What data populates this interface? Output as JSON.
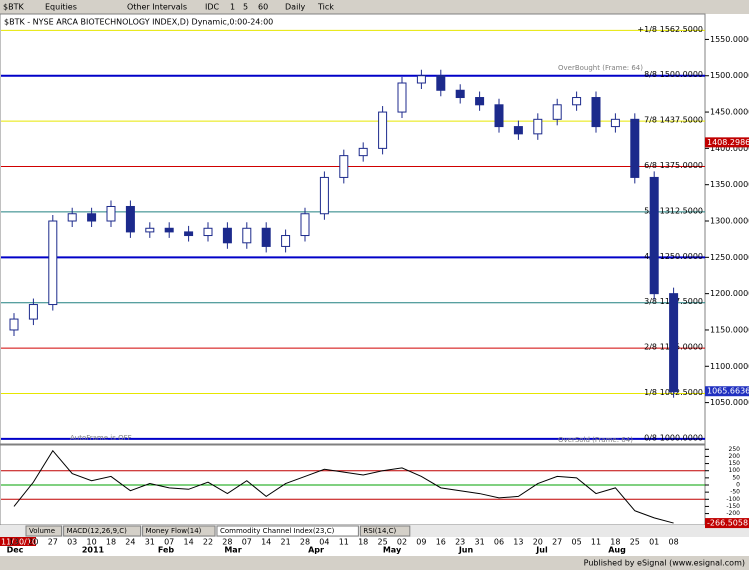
{
  "toolbar": {
    "symbol": "$BTK",
    "items": [
      "Equities",
      "Other Intervals",
      "IDC",
      "1",
      "5",
      "60",
      "Daily",
      "Tick"
    ]
  },
  "chart_data": {
    "type": "candlestick",
    "title": "$BTK - NYSE ARCA BIOTECHNOLOGY INDEX,D) Dynamic,0:00-24:00",
    "categories": [
      "13",
      "20",
      "27",
      "03",
      "10",
      "18",
      "24",
      "31",
      "07",
      "14",
      "22",
      "28",
      "07",
      "14",
      "21",
      "28",
      "04",
      "11",
      "18",
      "25",
      "02",
      "09",
      "16",
      "23",
      "31",
      "06",
      "13",
      "20",
      "27",
      "05",
      "11",
      "18",
      "25",
      "01",
      "08"
    ],
    "months": [
      "Dec",
      "2011",
      "Feb",
      "Mar",
      "Apr",
      "May",
      "Jun",
      "Jul",
      "Aug"
    ],
    "series": [
      {
        "name": "$BTK",
        "color": "#1c2a8c",
        "values": [
          1165,
          1185,
          1300,
          1310,
          1300,
          1320,
          1285,
          1290,
          1285,
          1280,
          1290,
          1270,
          1290,
          1265,
          1280,
          1310,
          1360,
          1390,
          1400,
          1450,
          1490,
          1500,
          1480,
          1470,
          1460,
          1430,
          1420,
          1440,
          1460,
          1470,
          1430,
          1440,
          1360,
          1200,
          1065
        ]
      }
    ],
    "ylim": [
      993,
      1585
    ],
    "yticks": [
      {
        "value": 1050,
        "label": "1050.0000"
      },
      {
        "value": 1100,
        "label": "1100.0000"
      },
      {
        "value": 1150,
        "label": "1150.0000"
      },
      {
        "value": 1200,
        "label": "1200.0000"
      },
      {
        "value": 1250,
        "label": "1250.0000"
      },
      {
        "value": 1300,
        "label": "1300.0000"
      },
      {
        "value": 1350,
        "label": "1350.0000"
      },
      {
        "value": 1400,
        "label": "1400.0000"
      },
      {
        "value": 1450,
        "label": "1450.0000"
      },
      {
        "value": 1500,
        "label": "1500.0000"
      },
      {
        "value": 1550,
        "label": "1550.0000"
      }
    ],
    "levels": [
      {
        "name": "+1/8",
        "value": 1562.5,
        "label": "1562.5000",
        "color": "#e6e600"
      },
      {
        "name": "8/8",
        "value": 1500,
        "label": "1500.0000",
        "color": "#0000c8"
      },
      {
        "name": "7/8",
        "value": 1437.5,
        "label": "1437.5000",
        "color": "#e6e600"
      },
      {
        "name": "6/8",
        "value": 1375,
        "label": "1375.0000",
        "color": "#d00000"
      },
      {
        "name": "5/8",
        "value": 1312.5,
        "label": "1312.5000",
        "color": "#208080"
      },
      {
        "name": "4/8",
        "value": 1250,
        "label": "1250.0000",
        "color": "#0000c8"
      },
      {
        "name": "3/8",
        "value": 1187.5,
        "label": "1187.5000",
        "color": "#208080"
      },
      {
        "name": "2/8",
        "value": 1125,
        "label": "1125.0000",
        "color": "#d00000"
      },
      {
        "name": "1/8",
        "value": 1062.5,
        "label": "1062.5000",
        "color": "#e6e600"
      },
      {
        "name": "0/8",
        "value": 1000,
        "label": "1000.0000",
        "color": "#0000c8"
      }
    ],
    "price_labels": [
      {
        "value": 1408.29865,
        "color": "#c00000"
      },
      {
        "value": 1065.6636,
        "color": "#2030c0"
      }
    ],
    "annotations": [
      "OverBought (Frame: 64)",
      "AutoFrame is OFF",
      "OverSold (Frame: 64)"
    ]
  },
  "cci": {
    "ylim": [
      -280,
      280
    ],
    "yticks": [
      250,
      200,
      150,
      100,
      50,
      0,
      -50,
      -100,
      -150,
      -200
    ],
    "values": [
      -150,
      20,
      240,
      80,
      30,
      60,
      -40,
      10,
      -20,
      -30,
      20,
      -60,
      30,
      -80,
      10,
      60,
      110,
      90,
      70,
      100,
      120,
      60,
      -20,
      -40,
      -60,
      -90,
      -80,
      10,
      60,
      50,
      -60,
      -20,
      -180,
      -230,
      -266.5058
    ],
    "last": -266.5058
  },
  "tabs": [
    "Volume",
    "MACD(12,26,9,C)",
    "Money Flow(14)",
    "Commodity Channel Index(23,C)",
    "RSI(14,C)"
  ],
  "start_date": "11/30/10",
  "footer": "Published by eSignal (www.esignal.com)"
}
